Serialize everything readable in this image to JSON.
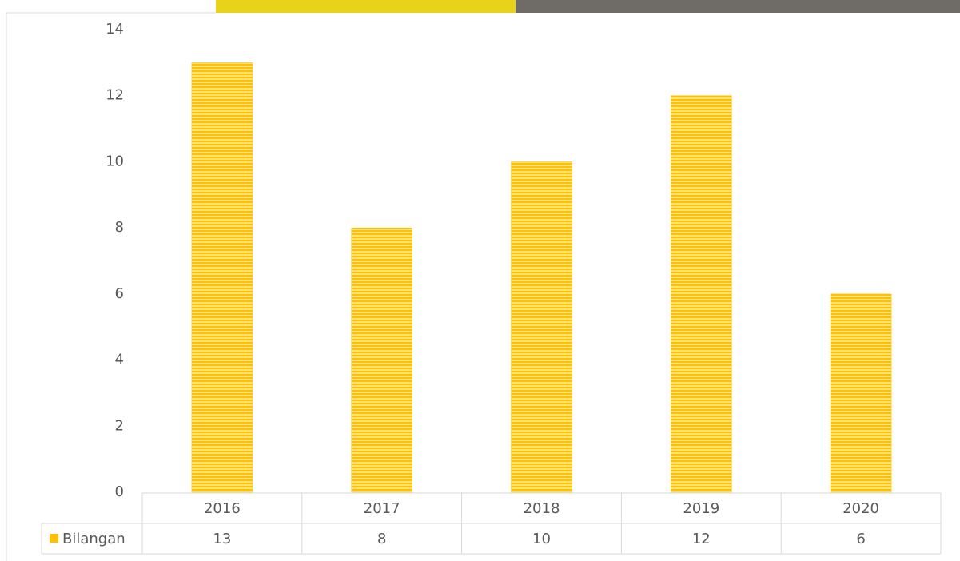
{
  "chart_data": {
    "type": "bar",
    "categories": [
      "2016",
      "2017",
      "2018",
      "2019",
      "2020"
    ],
    "series": [
      {
        "name": "Bilangan",
        "color": "#ffc000",
        "values": [
          13,
          8,
          10,
          12,
          6
        ]
      }
    ],
    "ylim": [
      0,
      14
    ],
    "yticks": [
      0,
      2,
      4,
      6,
      8,
      10,
      12,
      14
    ],
    "grid": false
  }
}
